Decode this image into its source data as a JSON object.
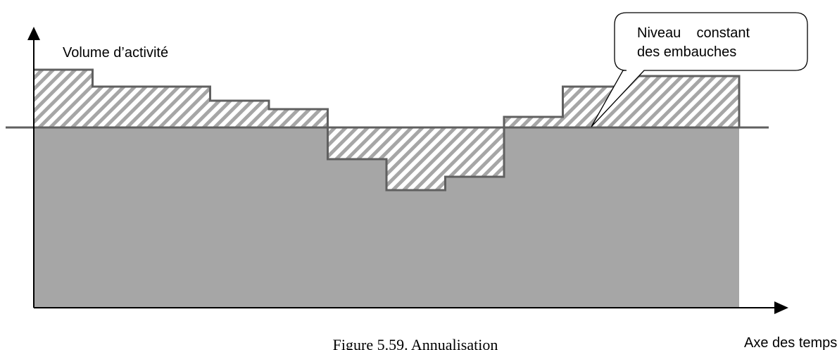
{
  "chart_data": {
    "type": "area",
    "ylabel": "Volume d’activité",
    "xlabel": "Axe des temps",
    "caption": "Figure 5.59. Annualisation",
    "annotation": [
      "Niveau    constant",
      "des embauches"
    ],
    "baseline_level": 0,
    "activity_steps": [
      {
        "start": 0,
        "end": 1,
        "value": 82
      },
      {
        "start": 1,
        "end": 3,
        "value": 58
      },
      {
        "start": 3,
        "end": 4,
        "value": 38
      },
      {
        "start": 4,
        "end": 5,
        "value": 26
      },
      {
        "start": 5,
        "end": 6,
        "value": -45
      },
      {
        "start": 6,
        "end": 7,
        "value": -89
      },
      {
        "start": 7,
        "end": 8,
        "value": -70
      },
      {
        "start": 8,
        "end": 9,
        "value": 15
      },
      {
        "start": 9,
        "end": 10,
        "value": 58
      },
      {
        "start": 10,
        "end": 12,
        "value": 73
      }
    ],
    "x_range": [
      0,
      12
    ],
    "y_range": [
      -250,
      120
    ],
    "colors": {
      "fill": "#a6a6a6",
      "hatch": "#a6a6a6",
      "step_line": "#606060",
      "baseline": "#606060",
      "axis": "#000000"
    }
  }
}
